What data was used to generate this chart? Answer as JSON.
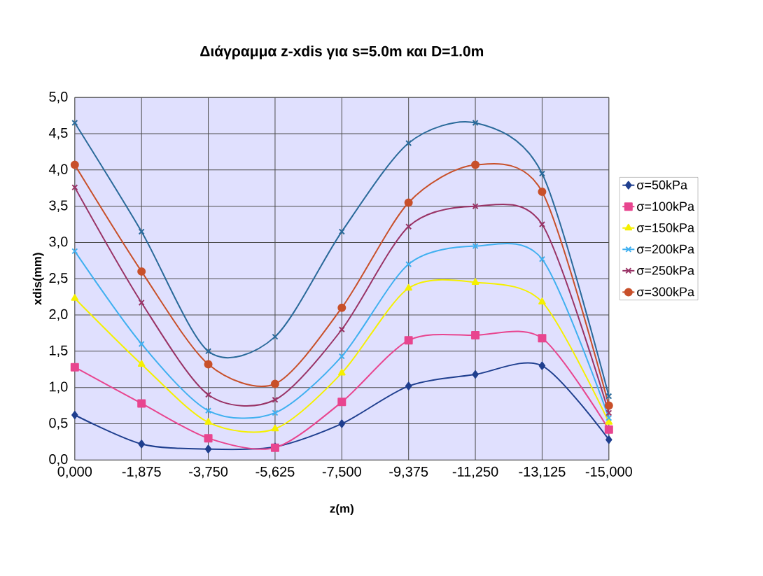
{
  "chart_data": {
    "type": "line",
    "title": "Διάγραμμα z-xdis για s=5.0m και D=1.0m",
    "xlabel": "z(m)",
    "ylabel": "xdis(mm)",
    "categories": [
      "0,000",
      "-1,875",
      "-3,750",
      "-5,625",
      "-7,500",
      "-9,375",
      "-11,250",
      "-13,125",
      "-15,000"
    ],
    "ylim": [
      0,
      5
    ],
    "yticks": [
      {
        "value": 0,
        "label": "0,0"
      },
      {
        "value": 0.5,
        "label": "0,5"
      },
      {
        "value": 1,
        "label": "1,0"
      },
      {
        "value": 1.5,
        "label": "1,5"
      },
      {
        "value": 2,
        "label": "2,0"
      },
      {
        "value": 2.5,
        "label": "2,5"
      },
      {
        "value": 3,
        "label": "3,0"
      },
      {
        "value": 3.5,
        "label": "3,5"
      },
      {
        "value": 4,
        "label": "4,0"
      },
      {
        "value": 4.5,
        "label": "4,5"
      },
      {
        "value": 5,
        "label": "5,0"
      }
    ],
    "grid": true,
    "legend": "right",
    "series": [
      {
        "name": "σ=50kPa",
        "color": "#1f3f8f",
        "marker": "diamond",
        "values": [
          0.62,
          0.22,
          0.15,
          0.18,
          0.5,
          1.02,
          1.18,
          1.3,
          0.28
        ]
      },
      {
        "name": "σ=100kPa",
        "color": "#e8458f",
        "marker": "square",
        "values": [
          1.28,
          0.78,
          0.3,
          0.17,
          0.8,
          1.65,
          1.72,
          1.68,
          0.42
        ]
      },
      {
        "name": "σ=150kPa",
        "color": "#f5f000",
        "marker": "triangle",
        "values": [
          2.23,
          1.32,
          0.52,
          0.43,
          1.2,
          2.37,
          2.45,
          2.18,
          0.52
        ]
      },
      {
        "name": "σ=200kPa",
        "color": "#40b0f0",
        "marker": "cross",
        "values": [
          2.88,
          1.6,
          0.68,
          0.65,
          1.43,
          2.7,
          2.95,
          2.77,
          0.58
        ]
      },
      {
        "name": "σ=250kPa",
        "color": "#993366",
        "marker": "cross",
        "values": [
          3.76,
          2.17,
          0.9,
          0.83,
          1.8,
          3.22,
          3.5,
          3.25,
          0.65
        ]
      },
      {
        "name": "σ=300kPa",
        "color": "#c8502a",
        "marker": "circle",
        "values": [
          4.07,
          2.6,
          1.32,
          1.05,
          2.1,
          3.55,
          4.07,
          3.7,
          0.75
        ]
      },
      {
        "color": "#2a6a9a",
        "marker": "cross",
        "values": [
          4.65,
          3.15,
          1.5,
          1.7,
          3.15,
          4.37,
          4.65,
          3.95,
          0.88
        ]
      }
    ]
  }
}
